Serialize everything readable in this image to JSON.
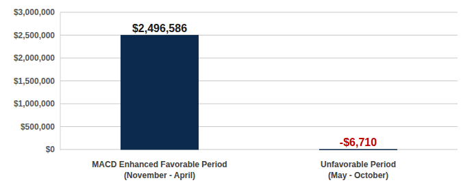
{
  "chart_data": {
    "type": "bar",
    "categories": [
      "MACD Enhanced Favorable Period\n(November - April)",
      "Unfavorable Period\n(May - October)"
    ],
    "values": [
      2496586,
      -6710
    ],
    "value_labels": [
      "$2,496,586",
      "-$6,710"
    ],
    "colors": [
      "#0c2a4d",
      "#0c2a4d"
    ],
    "data_labels": true,
    "grid": true,
    "ylim": [
      -20000,
      3000000
    ],
    "yticks": [
      {
        "value": 0,
        "label": "$0"
      },
      {
        "value": 500000,
        "label": "$500,000"
      },
      {
        "value": 1000000,
        "label": "$1,000,000"
      },
      {
        "value": 1500000,
        "label": "$1,500,000"
      },
      {
        "value": 2000000,
        "label": "$2,000,000"
      },
      {
        "value": 2500000,
        "label": "$2,500,000"
      },
      {
        "value": 3000000,
        "label": "$3,000,000"
      }
    ]
  }
}
